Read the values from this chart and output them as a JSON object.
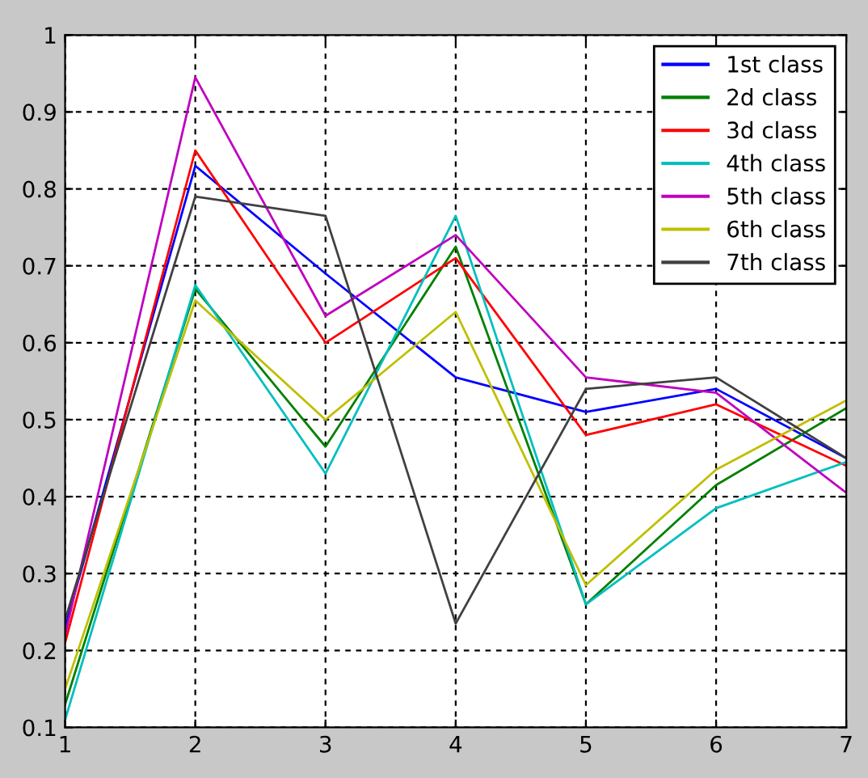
{
  "chart_data": {
    "type": "line",
    "x": [
      1,
      2,
      3,
      4,
      5,
      6,
      7
    ],
    "series": [
      {
        "name": "1st class",
        "color": "#0000ff",
        "values": [
          0.23,
          0.83,
          0.69,
          0.555,
          0.51,
          0.54,
          0.45
        ]
      },
      {
        "name": "2d class",
        "color": "#008000",
        "values": [
          0.13,
          0.67,
          0.465,
          0.725,
          0.26,
          0.415,
          0.515
        ]
      },
      {
        "name": "3d class",
        "color": "#ff0000",
        "values": [
          0.21,
          0.85,
          0.6,
          0.71,
          0.48,
          0.52,
          0.44
        ]
      },
      {
        "name": "4th class",
        "color": "#00bfbf",
        "values": [
          0.11,
          0.675,
          0.43,
          0.765,
          0.26,
          0.385,
          0.445
        ]
      },
      {
        "name": "5th class",
        "color": "#bf00bf",
        "values": [
          0.22,
          0.945,
          0.635,
          0.74,
          0.555,
          0.535,
          0.405
        ]
      },
      {
        "name": "6th class",
        "color": "#bfbf00",
        "values": [
          0.15,
          0.655,
          0.5,
          0.64,
          0.285,
          0.435,
          0.525
        ]
      },
      {
        "name": "7th class",
        "color": "#404040",
        "values": [
          0.24,
          0.79,
          0.765,
          0.235,
          0.54,
          0.555,
          0.45
        ]
      }
    ],
    "xlim": [
      1,
      7
    ],
    "ylim": [
      0.1,
      1
    ],
    "xticks": [
      1,
      2,
      3,
      4,
      5,
      6,
      7
    ],
    "yticks": [
      0.1,
      0.2,
      0.3,
      0.4,
      0.5,
      0.6,
      0.7,
      0.8,
      0.9,
      1
    ],
    "grid": true,
    "legend": "top right",
    "marker": "none",
    "line_style": "solid"
  }
}
